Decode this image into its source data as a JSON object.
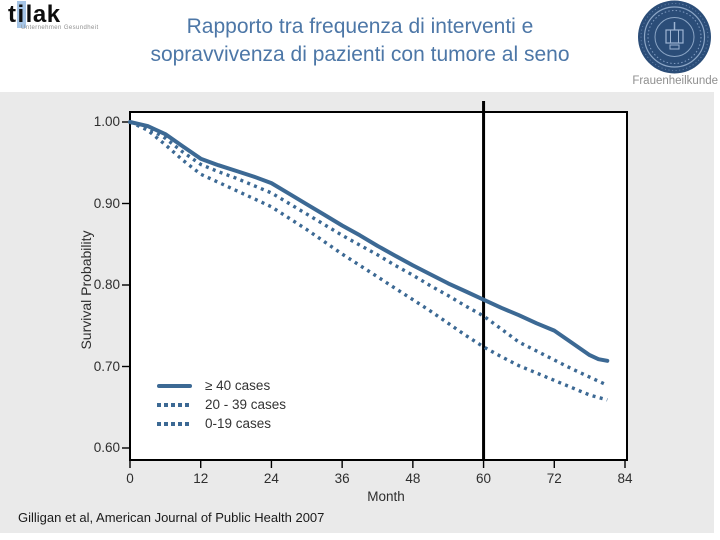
{
  "header": {
    "logo": {
      "t": "t",
      "i": "i",
      "lak": "lak",
      "subtitle": "Unternehmen Gesundheit"
    },
    "title_line1": "Rapporto tra frequenza di interventi e",
    "title_line2": "sopravvivenza di pazienti con tumore al seno",
    "seal_caption": "Frauenheilkunde"
  },
  "colors": {
    "curve": "#3c6994",
    "title_text": "#4d77a7",
    "seal_navy": "#2b4d78",
    "logo_highlight": "#a5c4e5",
    "content_background": "#eaeaea"
  },
  "chart_data": {
    "type": "line",
    "title": "",
    "xlabel": "Month",
    "ylabel": "Survival Probability",
    "xlim": [
      0,
      84
    ],
    "ylim": [
      0.6,
      1.0
    ],
    "grid": false,
    "legend_position": "inside lower-left",
    "color": "#3c6994",
    "reference_line_x": 60,
    "xticks": [
      {
        "value": 0,
        "label": "0"
      },
      {
        "value": 12,
        "label": "12"
      },
      {
        "value": 24,
        "label": "24"
      },
      {
        "value": 36,
        "label": "36"
      },
      {
        "value": 48,
        "label": "48"
      },
      {
        "value": 60,
        "label": "60"
      },
      {
        "value": 72,
        "label": "72"
      },
      {
        "value": 84,
        "label": "84"
      }
    ],
    "yticks": [
      {
        "value": 1.0,
        "label": "1.00"
      },
      {
        "value": 0.9,
        "label": "0.90"
      },
      {
        "value": 0.8,
        "label": "0.80"
      },
      {
        "value": 0.7,
        "label": "0.70"
      },
      {
        "value": 0.6,
        "label": "0.60"
      }
    ],
    "series": [
      {
        "name": "≥ 40 cases",
        "style": "solid",
        "x": [
          0,
          3,
          6,
          9,
          12,
          15,
          18,
          21,
          24,
          27,
          30,
          33,
          36,
          39,
          42,
          45,
          48,
          51,
          54,
          57,
          60,
          63,
          66,
          69,
          72,
          75,
          78,
          79.5,
          81
        ],
        "y": [
          1.0,
          0.995,
          0.985,
          0.97,
          0.955,
          0.947,
          0.94,
          0.933,
          0.925,
          0.912,
          0.899,
          0.886,
          0.873,
          0.861,
          0.848,
          0.836,
          0.824,
          0.813,
          0.802,
          0.792,
          0.782,
          0.772,
          0.763,
          0.753,
          0.744,
          0.729,
          0.714,
          0.709,
          0.707
        ]
      },
      {
        "name": "20 - 39 cases",
        "style": "dotted",
        "x": [
          0,
          3,
          6,
          9,
          12,
          15,
          18,
          21,
          24,
          27,
          30,
          33,
          36,
          39,
          42,
          45,
          48,
          51,
          54,
          57,
          60,
          63,
          66,
          69,
          72,
          75,
          78,
          81
        ],
        "y": [
          1.0,
          0.993,
          0.98,
          0.963,
          0.948,
          0.939,
          0.931,
          0.922,
          0.913,
          0.9,
          0.887,
          0.874,
          0.861,
          0.849,
          0.837,
          0.824,
          0.812,
          0.799,
          0.787,
          0.774,
          0.762,
          0.746,
          0.73,
          0.719,
          0.708,
          0.697,
          0.687,
          0.677
        ]
      },
      {
        "name": "0-19 cases",
        "style": "dotted",
        "x": [
          0,
          3,
          6,
          9,
          12,
          15,
          18,
          21,
          24,
          27,
          30,
          33,
          36,
          39,
          42,
          45,
          48,
          51,
          54,
          57,
          60,
          63,
          66,
          69,
          72,
          75,
          78,
          81
        ],
        "y": [
          1.0,
          0.99,
          0.972,
          0.953,
          0.936,
          0.926,
          0.916,
          0.906,
          0.896,
          0.882,
          0.868,
          0.853,
          0.838,
          0.824,
          0.81,
          0.796,
          0.782,
          0.768,
          0.753,
          0.738,
          0.724,
          0.712,
          0.701,
          0.692,
          0.683,
          0.674,
          0.665,
          0.659
        ]
      }
    ]
  },
  "citation": "Gilligan et al, American Journal of Public Health 2007"
}
